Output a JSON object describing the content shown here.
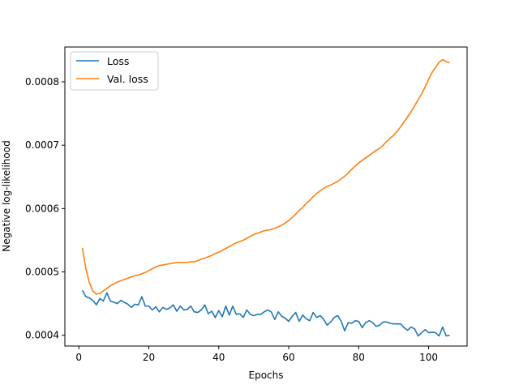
{
  "chart_data": {
    "type": "line",
    "title": "",
    "xlabel": "Epochs",
    "ylabel": "Negative log-likelihood",
    "xlim": [
      -4,
      111
    ],
    "ylim": [
      0.000383,
      0.000855
    ],
    "xticks": [
      0,
      20,
      40,
      60,
      80,
      100
    ],
    "xtick_labels": [
      "0",
      "20",
      "40",
      "60",
      "80",
      "100"
    ],
    "yticks": [
      0.0004,
      0.0005,
      0.0006,
      0.0007,
      0.0008
    ],
    "ytick_labels": [
      "0.0004",
      "0.0005",
      "0.0006",
      "0.0007",
      "0.0008"
    ],
    "grid": false,
    "legend_position": "upper-left",
    "series": [
      {
        "name": "Loss",
        "color": "#1f77b4",
        "x": [
          1,
          2,
          3,
          4,
          5,
          6,
          7,
          8,
          9,
          10,
          11,
          12,
          13,
          14,
          15,
          16,
          17,
          18,
          19,
          20,
          21,
          22,
          23,
          24,
          25,
          26,
          27,
          28,
          29,
          30,
          31,
          32,
          33,
          34,
          35,
          36,
          37,
          38,
          39,
          40,
          41,
          42,
          43,
          44,
          45,
          46,
          47,
          48,
          49,
          50,
          51,
          52,
          53,
          54,
          55,
          56,
          57,
          58,
          59,
          60,
          61,
          62,
          63,
          64,
          65,
          66,
          67,
          68,
          69,
          70,
          71,
          72,
          73,
          74,
          75,
          76,
          77,
          78,
          79,
          80,
          81,
          82,
          83,
          84,
          85,
          86,
          87,
          88,
          89,
          90,
          91,
          92,
          93,
          94,
          95,
          96,
          97,
          98,
          99,
          100,
          101,
          102,
          103,
          104,
          105,
          106
        ],
        "values": [
          0.000471,
          0.000461,
          0.000459,
          0.000455,
          0.000448,
          0.000458,
          0.000454,
          0.000467,
          0.000454,
          0.000452,
          0.00045,
          0.000455,
          0.000452,
          0.000449,
          0.000444,
          0.000449,
          0.000448,
          0.000461,
          0.000446,
          0.000446,
          0.00044,
          0.000445,
          0.000437,
          0.000444,
          0.000441,
          0.000443,
          0.000448,
          0.000438,
          0.000446,
          0.00044,
          0.000441,
          0.000446,
          0.000437,
          0.000436,
          0.00044,
          0.000448,
          0.000434,
          0.000438,
          0.000428,
          0.000439,
          0.000429,
          0.000446,
          0.000432,
          0.000446,
          0.000433,
          0.000434,
          0.000428,
          0.00044,
          0.000433,
          0.000431,
          0.000433,
          0.000433,
          0.000437,
          0.00044,
          0.000437,
          0.000425,
          0.000437,
          0.00043,
          0.000427,
          0.000422,
          0.00043,
          0.000436,
          0.000422,
          0.000432,
          0.000426,
          0.000423,
          0.000436,
          0.000428,
          0.000431,
          0.000425,
          0.000416,
          0.000421,
          0.000428,
          0.000431,
          0.000422,
          0.000407,
          0.00042,
          0.000419,
          0.000423,
          0.000422,
          0.000412,
          0.00042,
          0.000423,
          0.00042,
          0.000414,
          0.000416,
          0.000421,
          0.000421,
          0.000419,
          0.000418,
          0.000418,
          0.000418,
          0.000412,
          0.000408,
          0.000413,
          0.00041,
          0.000399,
          0.000404,
          0.000409,
          0.000404,
          0.000405,
          0.000404,
          0.000399,
          0.000413,
          0.000399,
          0.0004
        ]
      },
      {
        "name": "Val. loss",
        "color": "#ff7f0e",
        "x": [
          1,
          2,
          3,
          4,
          5,
          6,
          7,
          8,
          9,
          10,
          11,
          12,
          13,
          14,
          15,
          16,
          17,
          18,
          19,
          20,
          21,
          22,
          23,
          24,
          25,
          26,
          27,
          28,
          29,
          30,
          31,
          32,
          33,
          34,
          35,
          36,
          37,
          38,
          39,
          40,
          41,
          42,
          43,
          44,
          45,
          46,
          47,
          48,
          49,
          50,
          51,
          52,
          53,
          54,
          55,
          56,
          57,
          58,
          59,
          60,
          61,
          62,
          63,
          64,
          65,
          66,
          67,
          68,
          69,
          70,
          71,
          72,
          73,
          74,
          75,
          76,
          77,
          78,
          79,
          80,
          81,
          82,
          83,
          84,
          85,
          86,
          87,
          88,
          89,
          90,
          91,
          92,
          93,
          94,
          95,
          96,
          97,
          98,
          99,
          100,
          101,
          102,
          103,
          104,
          105,
          106
        ],
        "values": [
          0.000538,
          0.000505,
          0.000483,
          0.00047,
          0.000465,
          0.000466,
          0.00047,
          0.000474,
          0.000478,
          0.000481,
          0.000484,
          0.000486,
          0.000488,
          0.00049,
          0.000492,
          0.000494,
          0.000495,
          0.000497,
          0.000499,
          0.000502,
          0.000505,
          0.000508,
          0.00051,
          0.000511,
          0.000512,
          0.000513,
          0.000514,
          0.000515,
          0.000515,
          0.000515,
          0.000515,
          0.000516,
          0.000516,
          0.000518,
          0.00052,
          0.000522,
          0.000524,
          0.000526,
          0.000529,
          0.000531,
          0.000534,
          0.000537,
          0.00054,
          0.000543,
          0.000546,
          0.000548,
          0.00055,
          0.000553,
          0.000556,
          0.000559,
          0.000561,
          0.000563,
          0.000565,
          0.000566,
          0.000567,
          0.000569,
          0.000571,
          0.000574,
          0.000577,
          0.000581,
          0.000586,
          0.000591,
          0.000597,
          0.000602,
          0.000608,
          0.000613,
          0.000619,
          0.000624,
          0.000628,
          0.000632,
          0.000635,
          0.000637,
          0.00064,
          0.000643,
          0.000647,
          0.000651,
          0.000656,
          0.000662,
          0.000667,
          0.000672,
          0.000676,
          0.00068,
          0.000684,
          0.000688,
          0.000692,
          0.000695,
          0.0007,
          0.000706,
          0.000711,
          0.000716,
          0.000722,
          0.000729,
          0.000737,
          0.000745,
          0.000753,
          0.000762,
          0.000772,
          0.000781,
          0.000792,
          0.000804,
          0.000815,
          0.000823,
          0.000831,
          0.000835,
          0.000832,
          0.00083
        ]
      }
    ]
  }
}
